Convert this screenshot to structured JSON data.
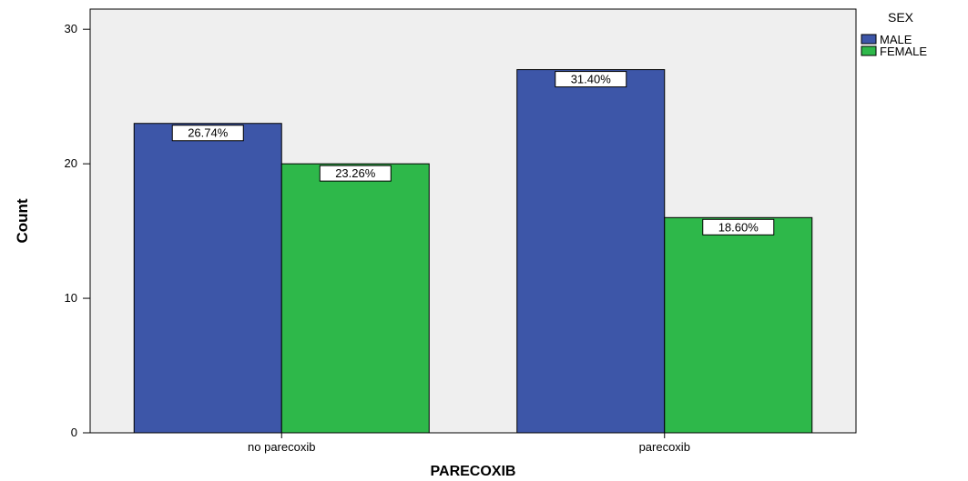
{
  "chart_data": {
    "type": "bar",
    "title": "",
    "xlabel": "PARECOXIB",
    "ylabel": "Count",
    "categories": [
      "no parecoxib",
      "parecoxib"
    ],
    "series": [
      {
        "name": "MALE",
        "values": [
          23,
          27
        ],
        "labels": [
          "26.74%",
          "31.40%"
        ],
        "color": "#3d56a8"
      },
      {
        "name": "FEMALE",
        "values": [
          20,
          16
        ],
        "labels": [
          "23.26%",
          "18.60%"
        ],
        "color": "#2eb84a"
      }
    ],
    "ylim": [
      0,
      31.5
    ],
    "yticks": [
      0,
      10,
      20,
      30
    ],
    "legend": {
      "title": "SEX",
      "position": "top-right"
    },
    "plot_background": "#efefef",
    "grid": false
  }
}
